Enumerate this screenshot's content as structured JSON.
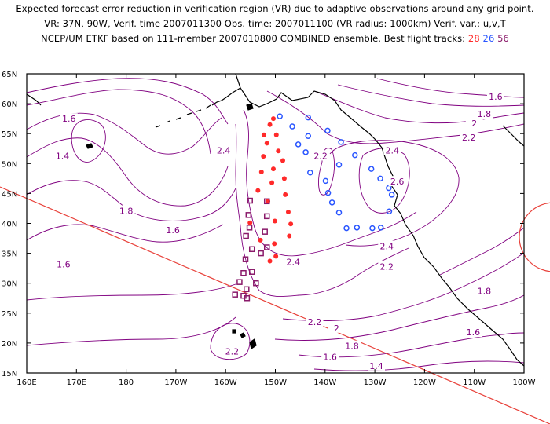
{
  "header": {
    "line1": "Expected forecast error reduction in verification region (VR) due to adaptive observations around any grid point.",
    "line2": "VR: 37N, 90W, Verif. time 2007011300 Obs. time: 2007011100 (VR radius: 1000km)  Verif. var.: u,v,T",
    "line3_prefix": "NCEP/UM ETKF based on 111-member 2007010800 COMBINED ensemble.  Best flight tracks:",
    "tracks": [
      {
        "label": "28",
        "color": "#ff2a2a"
      },
      {
        "label": "26",
        "color": "#2a56ff"
      },
      {
        "label": "56",
        "color": "#8a1a6a"
      }
    ]
  },
  "map": {
    "lat_labels": [
      "65N",
      "60N",
      "55N",
      "50N",
      "45N",
      "40N",
      "35N",
      "30N",
      "25N",
      "20N",
      "15N"
    ],
    "lon_labels": [
      "160E",
      "170E",
      "180",
      "170W",
      "160W",
      "150W",
      "140W",
      "130W",
      "120W",
      "110W",
      "100W"
    ],
    "contour_color": "#800080",
    "contour_labels": [
      {
        "text": "1.6",
        "lon": 168.5,
        "lat": 57.5
      },
      {
        "text": "1.4",
        "lon": 167.2,
        "lat": 51.3
      },
      {
        "text": "1.8",
        "lon": 180.0,
        "lat": 42.1
      },
      {
        "text": "1.6",
        "lon": 189.4,
        "lat": 38.9
      },
      {
        "text": "1.6",
        "lon": 167.4,
        "lat": 33.2
      },
      {
        "text": "2.4",
        "lon": 199.6,
        "lat": 52.2
      },
      {
        "text": "2.2",
        "lon": 219.1,
        "lat": 51.3
      },
      {
        "text": "2.4",
        "lon": 233.5,
        "lat": 52.2
      },
      {
        "text": "2.6",
        "lon": 234.5,
        "lat": 47.0
      },
      {
        "text": "2.4",
        "lon": 232.4,
        "lat": 36.2
      },
      {
        "text": "2.4",
        "lon": 213.6,
        "lat": 33.6
      },
      {
        "text": "2.2",
        "lon": 232.4,
        "lat": 32.8
      },
      {
        "text": "2.2",
        "lon": 217.9,
        "lat": 23.5
      },
      {
        "text": "2.2",
        "lon": 248.9,
        "lat": 54.4
      },
      {
        "text": "2",
        "lon": 250.0,
        "lat": 56.7
      },
      {
        "text": "1.8",
        "lon": 252.0,
        "lat": 58.3
      },
      {
        "text": "1.6",
        "lon": 254.3,
        "lat": 61.2
      },
      {
        "text": "1.8",
        "lon": 252.0,
        "lat": 28.7
      },
      {
        "text": "1.6",
        "lon": 249.8,
        "lat": 21.8
      },
      {
        "text": "2",
        "lon": 222.3,
        "lat": 22.5
      },
      {
        "text": "1.8",
        "lon": 225.4,
        "lat": 19.5
      },
      {
        "text": "1.6",
        "lon": 221.0,
        "lat": 17.7
      },
      {
        "text": "1.4",
        "lon": 230.3,
        "lat": 16.2
      },
      {
        "text": "2.2",
        "lon": 201.3,
        "lat": 18.6
      }
    ],
    "track_28_red_dots": [
      [
        209.6,
        57.5
      ],
      [
        208.9,
        56.5
      ],
      [
        207.7,
        54.8
      ],
      [
        210.2,
        54.8
      ],
      [
        208.3,
        53.4
      ],
      [
        210.6,
        52.1
      ],
      [
        207.6,
        51.2
      ],
      [
        211.5,
        50.5
      ],
      [
        209.6,
        49.1
      ],
      [
        207.2,
        48.6
      ],
      [
        211.8,
        47.5
      ],
      [
        209.3,
        46.8
      ],
      [
        206.5,
        45.5
      ],
      [
        212.0,
        44.8
      ],
      [
        208.5,
        43.7
      ],
      [
        212.6,
        41.9
      ],
      [
        209.9,
        40.4
      ],
      [
        213.1,
        39.9
      ],
      [
        212.8,
        37.9
      ],
      [
        207.0,
        37.2
      ],
      [
        209.8,
        36.6
      ],
      [
        210.1,
        34.5
      ],
      [
        208.9,
        33.7
      ],
      [
        204.9,
        40.1
      ]
    ],
    "track_26_blue_circles": [
      [
        210.9,
        57.9
      ],
      [
        216.6,
        57.7
      ],
      [
        213.4,
        56.2
      ],
      [
        220.5,
        55.5
      ],
      [
        216.6,
        54.6
      ],
      [
        214.6,
        53.2
      ],
      [
        223.2,
        53.6
      ],
      [
        216.1,
        51.9
      ],
      [
        226.0,
        51.4
      ],
      [
        222.8,
        49.8
      ],
      [
        217.0,
        48.5
      ],
      [
        229.3,
        49.1
      ],
      [
        220.1,
        47.1
      ],
      [
        231.1,
        47.5
      ],
      [
        220.6,
        45.1
      ],
      [
        232.8,
        45.9
      ],
      [
        221.4,
        43.5
      ],
      [
        233.4,
        44.8
      ],
      [
        222.8,
        41.8
      ],
      [
        232.9,
        42.0
      ],
      [
        224.3,
        39.2
      ],
      [
        226.4,
        39.3
      ],
      [
        229.5,
        39.2
      ],
      [
        231.2,
        39.3
      ]
    ],
    "track_56_purple_squares": [
      [
        204.9,
        43.8
      ],
      [
        208.3,
        43.7
      ],
      [
        204.6,
        41.4
      ],
      [
        208.3,
        41.2
      ],
      [
        204.8,
        39.3
      ],
      [
        207.9,
        38.6
      ],
      [
        204.1,
        37.9
      ],
      [
        208.3,
        36.0
      ],
      [
        205.3,
        35.7
      ],
      [
        207.1,
        35.0
      ],
      [
        204.0,
        34.0
      ],
      [
        205.3,
        31.9
      ],
      [
        203.6,
        31.7
      ],
      [
        202.8,
        30.2
      ],
      [
        206.1,
        30.0
      ],
      [
        204.2,
        29.0
      ],
      [
        203.6,
        27.9
      ],
      [
        201.9,
        28.1
      ],
      [
        204.3,
        27.5
      ]
    ]
  }
}
